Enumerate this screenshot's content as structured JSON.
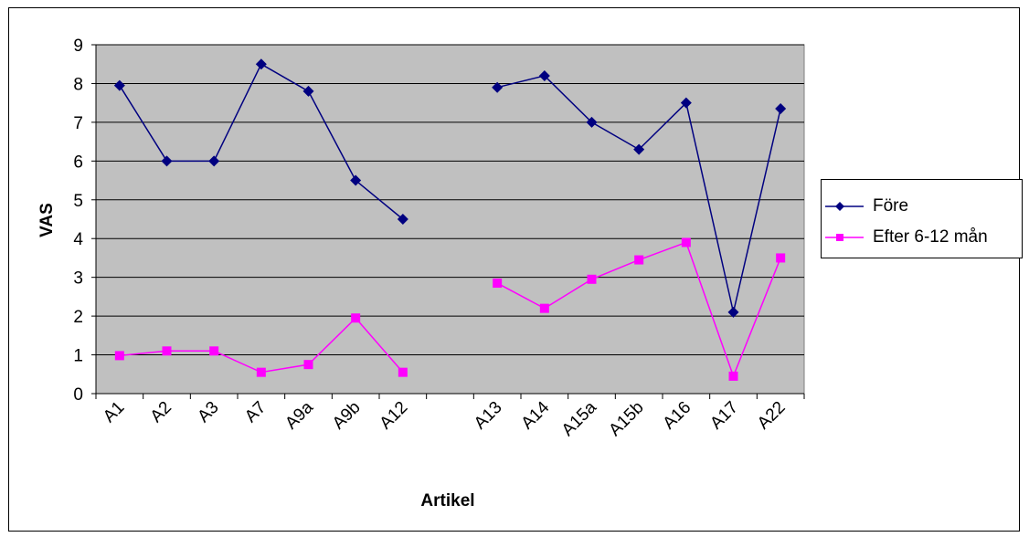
{
  "chart_data": {
    "type": "line",
    "title": "",
    "xlabel": "Artikel",
    "ylabel": "VAS",
    "ylim": [
      0,
      9
    ],
    "yticks": [
      0,
      1,
      2,
      3,
      4,
      5,
      6,
      7,
      8,
      9
    ],
    "grid": true,
    "legend_position": "right",
    "plot_background": "#c0c0c0",
    "categories": [
      "A1",
      "A2",
      "A3",
      "A7",
      "A9a",
      "A9b",
      "A12",
      "",
      "A13",
      "A14",
      "A15a",
      "A15b",
      "A16",
      "A17",
      "A22"
    ],
    "series": [
      {
        "name": "Före",
        "color": "#000080",
        "marker": "diamond",
        "values": [
          7.95,
          6.0,
          6.0,
          8.5,
          7.8,
          5.5,
          4.5,
          null,
          7.9,
          8.2,
          7.0,
          6.3,
          7.5,
          2.1,
          7.35
        ]
      },
      {
        "name": "Efter 6-12 mån",
        "color": "#ff00ff",
        "marker": "square",
        "values": [
          0.98,
          1.1,
          1.1,
          0.55,
          0.75,
          1.95,
          0.55,
          null,
          2.85,
          2.2,
          2.95,
          3.45,
          3.9,
          0.45,
          3.5
        ]
      }
    ]
  }
}
